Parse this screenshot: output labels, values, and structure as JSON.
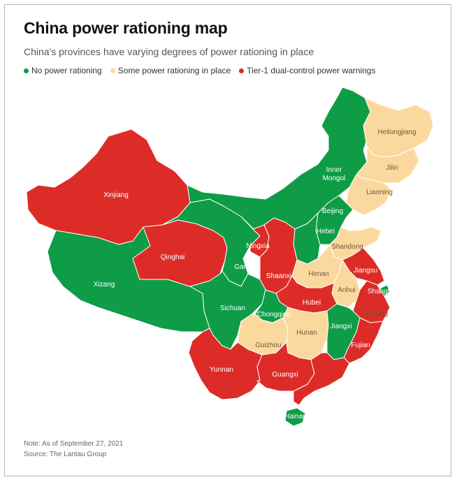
{
  "title": "China power rationing map",
  "subtitle": "China's provinces have varying degrees of power rationing in place",
  "legend": [
    {
      "label": "No power rationing",
      "color": "#0e9c47"
    },
    {
      "label": "Some power rationing in place",
      "color": "#fbd99e"
    },
    {
      "label": "Tier-1 dual-control power warnings",
      "color": "#dd2c27"
    }
  ],
  "colors": {
    "none": "#0e9c47",
    "some": "#fbd99e",
    "tier1": "#dd2c27",
    "border": "#ffffff"
  },
  "provinces": {
    "heilongjiang": {
      "name": "Heilongjiang",
      "status": "some"
    },
    "jilin": {
      "name": "Jilin",
      "status": "some"
    },
    "liaoning": {
      "name": "Liaoning",
      "status": "some"
    },
    "inner_mongol_1": {
      "name": "Inner",
      "status": "none"
    },
    "inner_mongol_2": {
      "name": "Mongol",
      "status": "none"
    },
    "beijing": {
      "name": "Beijing",
      "status": "none"
    },
    "hebei": {
      "name": "Hebei",
      "status": "none"
    },
    "shandong": {
      "name": "Shandong",
      "status": "some"
    },
    "xinjiang": {
      "name": "Xinjiang",
      "status": "tier1"
    },
    "qinghai": {
      "name": "Qinghai",
      "status": "tier1"
    },
    "xizang": {
      "name": "Xizang",
      "status": "none"
    },
    "gansu": {
      "name": "Gansu",
      "status": "none"
    },
    "ningxia": {
      "name": "Ningxia",
      "status": "tier1"
    },
    "shaanxi": {
      "name": "Shaanxi",
      "status": "tier1"
    },
    "henan": {
      "name": "Henan",
      "status": "some"
    },
    "jiangsu": {
      "name": "Jiangsu",
      "status": "tier1"
    },
    "anhui": {
      "name": "Anhui",
      "status": "some"
    },
    "shanghai": {
      "name": "Shanghai",
      "status": "none"
    },
    "sichuan": {
      "name": "Sichuan",
      "status": "none"
    },
    "chongqing": {
      "name": "Chongqing",
      "status": "none"
    },
    "hubei": {
      "name": "Hubei",
      "status": "tier1"
    },
    "zhejiang": {
      "name": "Zhejiang",
      "status": "tier1"
    },
    "hunan": {
      "name": "Hunan",
      "status": "some"
    },
    "jiangxi": {
      "name": "Jiangxi",
      "status": "none"
    },
    "guizhou": {
      "name": "Guizhou",
      "status": "some"
    },
    "fujian": {
      "name": "Fujian",
      "status": "tier1"
    },
    "yunnan": {
      "name": "Yunnan",
      "status": "tier1"
    },
    "guangxi": {
      "name": "Guangxi",
      "status": "tier1"
    },
    "hainan": {
      "name": "Hainan",
      "status": "none"
    }
  },
  "note": "Note: As of September 27, 2021",
  "source": "Source: The Lantau Group"
}
